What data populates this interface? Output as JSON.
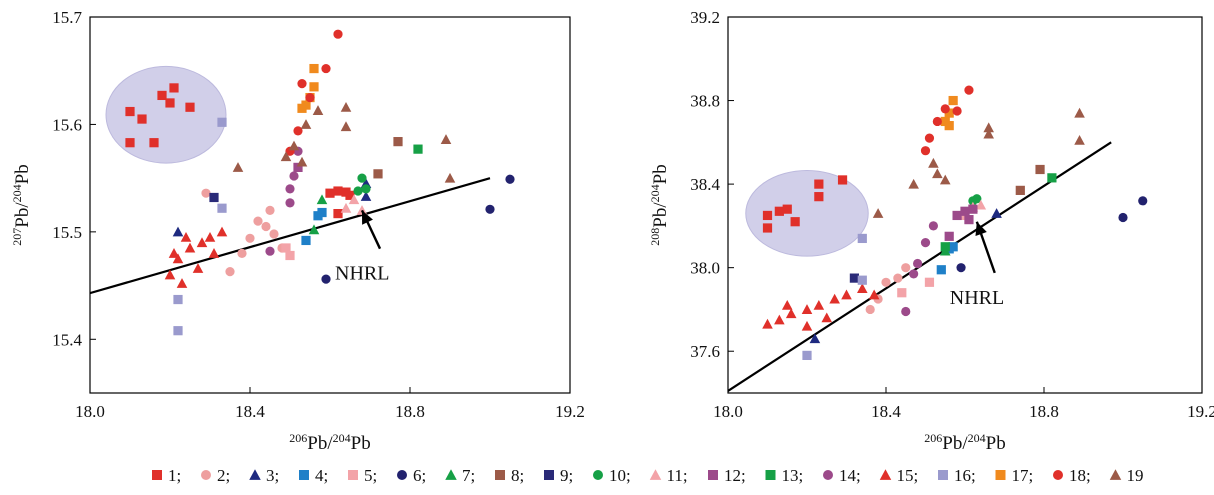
{
  "legend": {
    "items": [
      {
        "label": "1;",
        "shape": "square",
        "color": "#e0302a"
      },
      {
        "label": "2;",
        "shape": "circle",
        "color": "#ee9f9f"
      },
      {
        "label": "3;",
        "shape": "triangle",
        "color": "#1e2a80"
      },
      {
        "label": "4;",
        "shape": "square",
        "color": "#1f80c8"
      },
      {
        "label": "5;",
        "shape": "square",
        "color": "#f3a3a8"
      },
      {
        "label": "6;",
        "shape": "circle",
        "color": "#22226e"
      },
      {
        "label": "7;",
        "shape": "triangle",
        "color": "#16a046"
      },
      {
        "label": "8;",
        "shape": "square",
        "color": "#9c5a48"
      },
      {
        "label": "9;",
        "shape": "square",
        "color": "#2a2a78"
      },
      {
        "label": "10;",
        "shape": "circle",
        "color": "#16a046"
      },
      {
        "label": "11;",
        "shape": "triangle",
        "color": "#f3a3a8"
      },
      {
        "label": "12;",
        "shape": "square",
        "color": "#9c4a8a"
      },
      {
        "label": "13;",
        "shape": "square",
        "color": "#16a046"
      },
      {
        "label": "14;",
        "shape": "circle",
        "color": "#9c4a8a"
      },
      {
        "label": "15;",
        "shape": "triangle",
        "color": "#e0302a"
      },
      {
        "label": "16;",
        "shape": "square",
        "color": "#9a9acd"
      },
      {
        "label": "17;",
        "shape": "square",
        "color": "#f08a1e"
      },
      {
        "label": "18;",
        "shape": "circle",
        "color": "#e0302a"
      },
      {
        "label": "19",
        "shape": "triangle",
        "color": "#9c5a48"
      }
    ]
  },
  "chart_data": [
    {
      "type": "scatter",
      "xlabel": {
        "sup1": "206",
        "base1": "Pb/",
        "sup2": "204",
        "base2": "Pb"
      },
      "ylabel": {
        "sup1": "207",
        "base1": "Pb/",
        "sup2": "204",
        "base2": "Pb"
      },
      "xlim": [
        18.0,
        19.2
      ],
      "ylim": [
        15.35,
        15.7
      ],
      "xticks": [
        "18.0",
        "18.4",
        "18.8",
        "19.2"
      ],
      "yticks": [
        "15.4",
        "15.5",
        "15.6",
        "15.7"
      ],
      "xtick_values": [
        18.0,
        18.4,
        18.8,
        19.2
      ],
      "ytick_values": [
        15.4,
        15.5,
        15.6,
        15.7
      ],
      "reference_line": {
        "label": "NHRL",
        "points": [
          [
            18.0,
            15.443
          ],
          [
            19.0,
            15.55
          ]
        ]
      },
      "annotation": {
        "text": "NHRL",
        "x": 18.7,
        "y": 15.462,
        "arrow_to": [
          18.68,
          15.52
        ]
      },
      "highlight_region": {
        "cx": 18.19,
        "cy": 15.609,
        "rx": 0.15,
        "ry": 0.045
      },
      "series": [
        {
          "group": 1,
          "points": [
            [
              18.1,
              15.612
            ],
            [
              18.13,
              15.605
            ],
            [
              18.18,
              15.627
            ],
            [
              18.2,
              15.62
            ],
            [
              18.21,
              15.634
            ],
            [
              18.25,
              15.616
            ],
            [
              18.1,
              15.583
            ],
            [
              18.16,
              15.583
            ],
            [
              18.6,
              15.536
            ],
            [
              18.62,
              15.538
            ],
            [
              18.64,
              15.537
            ],
            [
              18.65,
              15.534
            ],
            [
              18.62,
              15.517
            ]
          ]
        },
        {
          "group": 2,
          "points": [
            [
              18.29,
              15.536
            ],
            [
              18.35,
              15.463
            ],
            [
              18.38,
              15.48
            ],
            [
              18.4,
              15.494
            ],
            [
              18.42,
              15.51
            ],
            [
              18.45,
              15.52
            ],
            [
              18.46,
              15.498
            ],
            [
              18.44,
              15.505
            ],
            [
              18.48,
              15.485
            ]
          ]
        },
        {
          "group": 3,
          "points": [
            [
              18.22,
              15.5
            ],
            [
              18.69,
              15.545
            ],
            [
              18.69,
              15.533
            ]
          ]
        },
        {
          "group": 4,
          "points": [
            [
              18.54,
              15.492
            ],
            [
              18.57,
              15.515
            ],
            [
              18.58,
              15.518
            ]
          ]
        },
        {
          "group": 5,
          "points": [
            [
              18.49,
              15.485
            ],
            [
              18.5,
              15.478
            ]
          ]
        },
        {
          "group": 6,
          "points": [
            [
              18.59,
              15.456
            ],
            [
              19.0,
              15.521
            ],
            [
              19.05,
              15.549
            ]
          ]
        },
        {
          "group": 7,
          "points": [
            [
              18.56,
              15.502
            ],
            [
              18.58,
              15.53
            ]
          ]
        },
        {
          "group": 8,
          "points": [
            [
              18.77,
              15.584
            ],
            [
              18.72,
              15.554
            ]
          ]
        },
        {
          "group": 9,
          "points": [
            [
              18.31,
              15.532
            ]
          ]
        },
        {
          "group": 10,
          "points": [
            [
              18.67,
              15.538
            ],
            [
              18.68,
              15.55
            ],
            [
              18.69,
              15.54
            ]
          ]
        },
        {
          "group": 11,
          "points": [
            [
              18.64,
              15.522
            ],
            [
              18.66,
              15.53
            ],
            [
              18.68,
              15.52
            ]
          ]
        },
        {
          "group": 12,
          "points": [
            [
              18.52,
              15.56
            ]
          ]
        },
        {
          "group": 13,
          "points": [
            [
              18.82,
              15.577
            ]
          ]
        },
        {
          "group": 14,
          "points": [
            [
              18.5,
              15.54
            ],
            [
              18.51,
              15.552
            ],
            [
              18.52,
              15.575
            ],
            [
              18.5,
              15.527
            ],
            [
              18.45,
              15.482
            ]
          ]
        },
        {
          "group": 15,
          "points": [
            [
              18.2,
              15.46
            ],
            [
              18.22,
              15.475
            ],
            [
              18.25,
              15.485
            ],
            [
              18.28,
              15.49
            ],
            [
              18.3,
              15.495
            ],
            [
              18.33,
              15.5
            ],
            [
              18.23,
              15.452
            ],
            [
              18.27,
              15.466
            ],
            [
              18.31,
              15.48
            ],
            [
              18.21,
              15.48
            ],
            [
              18.24,
              15.495
            ]
          ]
        },
        {
          "group": 16,
          "points": [
            [
              18.22,
              15.408
            ],
            [
              18.22,
              15.437
            ],
            [
              18.33,
              15.602
            ],
            [
              18.33,
              15.522
            ]
          ]
        },
        {
          "group": 17,
          "points": [
            [
              18.53,
              15.615
            ],
            [
              18.55,
              15.625
            ],
            [
              18.56,
              15.635
            ],
            [
              18.56,
              15.652
            ],
            [
              18.54,
              15.618
            ]
          ]
        },
        {
          "group": 18,
          "points": [
            [
              18.52,
              15.594
            ],
            [
              18.53,
              15.638
            ],
            [
              18.55,
              15.625
            ],
            [
              18.59,
              15.652
            ],
            [
              18.62,
              15.684
            ],
            [
              18.5,
              15.575
            ]
          ]
        },
        {
          "group": 19,
          "points": [
            [
              18.37,
              15.56
            ],
            [
              18.49,
              15.57
            ],
            [
              18.51,
              15.58
            ],
            [
              18.54,
              15.6
            ],
            [
              18.57,
              15.613
            ],
            [
              18.64,
              15.616
            ],
            [
              18.64,
              15.598
            ],
            [
              18.89,
              15.586
            ],
            [
              18.9,
              15.55
            ],
            [
              18.53,
              15.565
            ]
          ]
        }
      ]
    },
    {
      "type": "scatter",
      "xlabel": {
        "sup1": "206",
        "base1": "Pb/",
        "sup2": "204",
        "base2": "Pb"
      },
      "ylabel": {
        "sup1": "208",
        "base1": "Pb/",
        "sup2": "204",
        "base2": "Pb"
      },
      "xlim": [
        18.0,
        19.2
      ],
      "ylim": [
        37.4,
        39.2
      ],
      "xticks": [
        "18.0",
        "18.4",
        "18.8",
        "19.2"
      ],
      "yticks": [
        "37.6",
        "38.0",
        "38.4",
        "38.8",
        "39.2"
      ],
      "xtick_values": [
        18.0,
        18.4,
        18.8,
        19.2
      ],
      "ytick_values": [
        37.6,
        38.0,
        38.4,
        38.8,
        39.2
      ],
      "reference_line": {
        "label": "NHRL",
        "points": [
          [
            18.0,
            37.41
          ],
          [
            18.97,
            38.6
          ]
        ]
      },
      "annotation": {
        "text": "NHRL",
        "x": 18.65,
        "y": 37.86,
        "arrow_to": [
          18.63,
          38.22
        ]
      },
      "highlight_region": {
        "cx": 18.2,
        "cy": 38.26,
        "rx": 0.155,
        "ry": 0.205
      },
      "series": [
        {
          "group": 1,
          "points": [
            [
              18.1,
              38.25
            ],
            [
              18.13,
              38.27
            ],
            [
              18.15,
              38.28
            ],
            [
              18.1,
              38.19
            ],
            [
              18.23,
              38.4
            ],
            [
              18.23,
              38.34
            ],
            [
              18.29,
              38.42
            ],
            [
              18.17,
              38.22
            ]
          ]
        },
        {
          "group": 2,
          "points": [
            [
              18.4,
              37.93
            ],
            [
              18.43,
              37.95
            ],
            [
              18.45,
              38.0
            ],
            [
              18.38,
              37.85
            ],
            [
              18.36,
              37.8
            ]
          ]
        },
        {
          "group": 3,
          "points": [
            [
              18.22,
              37.66
            ],
            [
              18.68,
              38.26
            ]
          ]
        },
        {
          "group": 4,
          "points": [
            [
              18.54,
              37.99
            ],
            [
              18.56,
              38.09
            ],
            [
              18.57,
              38.1
            ]
          ]
        },
        {
          "group": 5,
          "points": [
            [
              18.51,
              37.93
            ],
            [
              18.44,
              37.88
            ]
          ]
        },
        {
          "group": 6,
          "points": [
            [
              18.59,
              38.0
            ],
            [
              19.0,
              38.24
            ],
            [
              19.05,
              38.32
            ]
          ]
        },
        {
          "group": 7,
          "points": [
            [
              18.55,
              38.08
            ]
          ]
        },
        {
          "group": 8,
          "points": [
            [
              18.79,
              38.47
            ],
            [
              18.74,
              38.37
            ]
          ]
        },
        {
          "group": 9,
          "points": [
            [
              18.32,
              37.95
            ]
          ]
        },
        {
          "group": 10,
          "points": [
            [
              18.62,
              38.32
            ],
            [
              18.63,
              38.33
            ]
          ]
        },
        {
          "group": 11,
          "points": [
            [
              18.62,
              38.29
            ],
            [
              18.64,
              38.3
            ],
            [
              18.6,
              38.25
            ]
          ]
        },
        {
          "group": 12,
          "points": [
            [
              18.58,
              38.25
            ],
            [
              18.6,
              38.27
            ],
            [
              18.61,
              38.23
            ],
            [
              18.62,
              38.28
            ],
            [
              18.56,
              38.15
            ]
          ]
        },
        {
          "group": 13,
          "points": [
            [
              18.82,
              38.43
            ],
            [
              18.55,
              38.1
            ]
          ]
        },
        {
          "group": 14,
          "points": [
            [
              18.5,
              38.12
            ],
            [
              18.52,
              38.2
            ],
            [
              18.48,
              38.02
            ],
            [
              18.47,
              37.97
            ],
            [
              18.45,
              37.79
            ]
          ]
        },
        {
          "group": 15,
          "points": [
            [
              18.1,
              37.73
            ],
            [
              18.13,
              37.75
            ],
            [
              18.16,
              37.78
            ],
            [
              18.2,
              37.8
            ],
            [
              18.23,
              37.82
            ],
            [
              18.27,
              37.85
            ],
            [
              18.3,
              37.87
            ],
            [
              18.34,
              37.9
            ],
            [
              18.37,
              37.87
            ],
            [
              18.2,
              37.72
            ],
            [
              18.25,
              37.76
            ],
            [
              18.15,
              37.82
            ]
          ]
        },
        {
          "group": 16,
          "points": [
            [
              18.2,
              37.58
            ],
            [
              18.34,
              38.14
            ],
            [
              18.34,
              37.94
            ]
          ]
        },
        {
          "group": 17,
          "points": [
            [
              18.55,
              38.7
            ],
            [
              18.56,
              38.74
            ],
            [
              18.57,
              38.8
            ],
            [
              18.56,
              38.68
            ]
          ]
        },
        {
          "group": 18,
          "points": [
            [
              18.5,
              38.56
            ],
            [
              18.53,
              38.7
            ],
            [
              18.55,
              38.76
            ],
            [
              18.58,
              38.75
            ],
            [
              18.61,
              38.85
            ],
            [
              18.51,
              38.62
            ]
          ]
        },
        {
          "group": 19,
          "points": [
            [
              18.38,
              38.26
            ],
            [
              18.47,
              38.4
            ],
            [
              18.52,
              38.5
            ],
            [
              18.53,
              38.45
            ],
            [
              18.55,
              38.42
            ],
            [
              18.66,
              38.67
            ],
            [
              18.89,
              38.74
            ],
            [
              18.89,
              38.61
            ],
            [
              18.66,
              38.64
            ]
          ]
        }
      ]
    }
  ]
}
